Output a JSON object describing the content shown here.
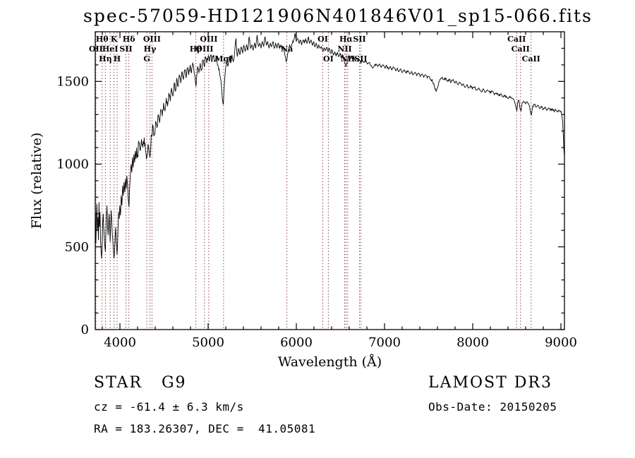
{
  "title": "spec-57059-HD121906N401846V01_sp15-066.fits",
  "annotations": {
    "class_line": "STAR   G9",
    "cz_line": "cz = -61.4 ± 6.3 km/s",
    "radec_line": "RA = 183.26307, DEC =  41.05081",
    "survey": "LAMOST DR3",
    "obs_date": "Obs-Date: 20150205"
  },
  "chart_data": {
    "type": "line",
    "title": "spec-57059-HD121906N401846V01_sp15-066.fits",
    "xlabel": "Wavelength (Å)",
    "ylabel": "Flux (relative)",
    "xlim": [
      3720,
      9040
    ],
    "ylim": [
      0,
      1800
    ],
    "xticks": [
      4000,
      5000,
      6000,
      7000,
      8000,
      9000
    ],
    "yticks": [
      0,
      500,
      1000,
      1500
    ],
    "x_minor_step": 200,
    "y_minor_step": 100,
    "grid": false,
    "legend": "none",
    "line_color": "#000000",
    "marker_line_color": "#8f4040",
    "noise": {
      "seed": 7,
      "step": 6,
      "regions": [
        {
          "to": 4400,
          "amp": 38
        },
        {
          "to": 5200,
          "amp": 18
        },
        {
          "to": 9100,
          "amp": 8
        }
      ]
    },
    "spectral_lines": [
      {
        "label": "OII",
        "wl": 3727,
        "row": 2
      },
      {
        "label": "Hθ",
        "wl": 3798,
        "row": 1
      },
      {
        "label": "Hη",
        "wl": 3835,
        "row": 3
      },
      {
        "label": "HeI",
        "wl": 3889,
        "row": 2
      },
      {
        "label": "K",
        "wl": 3933,
        "row": 1
      },
      {
        "label": "H",
        "wl": 3968,
        "row": 3
      },
      {
        "label": "SII",
        "wl": 4068,
        "row": 2
      },
      {
        "label": "Hδ",
        "wl": 4101,
        "row": 1
      },
      {
        "label": "G",
        "wl": 4305,
        "row": 3
      },
      {
        "label": "Hγ",
        "wl": 4340,
        "row": 2
      },
      {
        "label": "OIII",
        "wl": 4363,
        "row": 1
      },
      {
        "label": "Hβ",
        "wl": 4861,
        "row": 2
      },
      {
        "label": "OIII",
        "wl": 4959,
        "row": 2
      },
      {
        "label": "OIII",
        "wl": 5007,
        "row": 1
      },
      {
        "label": "MgI",
        "wl": 5175,
        "row": 3
      },
      {
        "label": "Na",
        "wl": 5893,
        "row": 2
      },
      {
        "label": "OI",
        "wl": 6300,
        "row": 1
      },
      {
        "label": "OI",
        "wl": 6363,
        "row": 3
      },
      {
        "label": "NII",
        "wl": 6548,
        "row": 2
      },
      {
        "label": "Hα",
        "wl": 6563,
        "row": 1
      },
      {
        "label": "NII",
        "wl": 6583,
        "row": 3
      },
      {
        "label": "SII",
        "wl": 6716,
        "row": 1
      },
      {
        "label": "SII",
        "wl": 6731,
        "row": 3
      },
      {
        "label": "CaII",
        "wl": 8498,
        "row": 1
      },
      {
        "label": "CaII",
        "wl": 8542,
        "row": 2
      },
      {
        "label": "CaII",
        "wl": 8662,
        "row": 3
      }
    ],
    "spectrum": [
      [
        3722,
        700
      ],
      [
        3727,
        520
      ],
      [
        3732,
        640
      ],
      [
        3738,
        760
      ],
      [
        3744,
        600
      ],
      [
        3750,
        680
      ],
      [
        3756,
        540
      ],
      [
        3762,
        770
      ],
      [
        3768,
        620
      ],
      [
        3774,
        710
      ],
      [
        3780,
        550
      ],
      [
        3786,
        470
      ],
      [
        3792,
        430
      ],
      [
        3798,
        500
      ],
      [
        3804,
        640
      ],
      [
        3810,
        700
      ],
      [
        3816,
        620
      ],
      [
        3822,
        560
      ],
      [
        3828,
        510
      ],
      [
        3835,
        470
      ],
      [
        3841,
        590
      ],
      [
        3847,
        690
      ],
      [
        3853,
        750
      ],
      [
        3859,
        640
      ],
      [
        3865,
        570
      ],
      [
        3871,
        630
      ],
      [
        3877,
        700
      ],
      [
        3883,
        610
      ],
      [
        3889,
        530
      ],
      [
        3895,
        640
      ],
      [
        3901,
        720
      ],
      [
        3907,
        660
      ],
      [
        3913,
        580
      ],
      [
        3919,
        540
      ],
      [
        3925,
        490
      ],
      [
        3933,
        430
      ],
      [
        3939,
        470
      ],
      [
        3945,
        560
      ],
      [
        3951,
        620
      ],
      [
        3957,
        540
      ],
      [
        3963,
        490
      ],
      [
        3968,
        450
      ],
      [
        3974,
        540
      ],
      [
        3980,
        640
      ],
      [
        3986,
        710
      ],
      [
        3992,
        670
      ],
      [
        3998,
        750
      ],
      [
        4006,
        690
      ],
      [
        4014,
        810
      ],
      [
        4022,
        750
      ],
      [
        4030,
        870
      ],
      [
        4038,
        810
      ],
      [
        4046,
        890
      ],
      [
        4054,
        830
      ],
      [
        4062,
        910
      ],
      [
        4070,
        850
      ],
      [
        4078,
        930
      ],
      [
        4086,
        870
      ],
      [
        4094,
        790
      ],
      [
        4102,
        740
      ],
      [
        4110,
        860
      ],
      [
        4118,
        940
      ],
      [
        4126,
        1000
      ],
      [
        4134,
        950
      ],
      [
        4142,
        1040
      ],
      [
        4150,
        980
      ],
      [
        4158,
        1060
      ],
      [
        4166,
        1010
      ],
      [
        4174,
        1080
      ],
      [
        4182,
        1030
      ],
      [
        4190,
        1100
      ],
      [
        4200,
        1050
      ],
      [
        4215,
        1130
      ],
      [
        4230,
        1080
      ],
      [
        4245,
        1150
      ],
      [
        4260,
        1100
      ],
      [
        4275,
        1160
      ],
      [
        4290,
        1080
      ],
      [
        4305,
        1040
      ],
      [
        4320,
        1120
      ],
      [
        4332,
        1070
      ],
      [
        4340,
        1040
      ],
      [
        4350,
        1110
      ],
      [
        4360,
        1170
      ],
      [
        4375,
        1230
      ],
      [
        4390,
        1180
      ],
      [
        4405,
        1260
      ],
      [
        4420,
        1220
      ],
      [
        4435,
        1300
      ],
      [
        4450,
        1250
      ],
      [
        4465,
        1330
      ],
      [
        4480,
        1290
      ],
      [
        4495,
        1370
      ],
      [
        4510,
        1320
      ],
      [
        4525,
        1400
      ],
      [
        4540,
        1350
      ],
      [
        4555,
        1430
      ],
      [
        4570,
        1380
      ],
      [
        4585,
        1460
      ],
      [
        4600,
        1410
      ],
      [
        4615,
        1490
      ],
      [
        4630,
        1440
      ],
      [
        4645,
        1520
      ],
      [
        4660,
        1470
      ],
      [
        4675,
        1540
      ],
      [
        4690,
        1490
      ],
      [
        4705,
        1560
      ],
      [
        4720,
        1510
      ],
      [
        4735,
        1570
      ],
      [
        4750,
        1520
      ],
      [
        4765,
        1580
      ],
      [
        4780,
        1540
      ],
      [
        4795,
        1600
      ],
      [
        4810,
        1550
      ],
      [
        4825,
        1610
      ],
      [
        4840,
        1560
      ],
      [
        4855,
        1500
      ],
      [
        4862,
        1470
      ],
      [
        4870,
        1530
      ],
      [
        4880,
        1590
      ],
      [
        4895,
        1550
      ],
      [
        4910,
        1610
      ],
      [
        4925,
        1570
      ],
      [
        4940,
        1630
      ],
      [
        4955,
        1590
      ],
      [
        4970,
        1650
      ],
      [
        4985,
        1610
      ],
      [
        5000,
        1650
      ],
      [
        5015,
        1620
      ],
      [
        5030,
        1660
      ],
      [
        5045,
        1620
      ],
      [
        5060,
        1660
      ],
      [
        5075,
        1620
      ],
      [
        5090,
        1650
      ],
      [
        5105,
        1600
      ],
      [
        5120,
        1570
      ],
      [
        5135,
        1530
      ],
      [
        5150,
        1470
      ],
      [
        5165,
        1380
      ],
      [
        5172,
        1360
      ],
      [
        5180,
        1450
      ],
      [
        5195,
        1560
      ],
      [
        5210,
        1620
      ],
      [
        5225,
        1590
      ],
      [
        5240,
        1650
      ],
      [
        5255,
        1610
      ],
      [
        5270,
        1660
      ],
      [
        5285,
        1620
      ],
      [
        5300,
        1670
      ],
      [
        5315,
        1760
      ],
      [
        5330,
        1650
      ],
      [
        5345,
        1700
      ],
      [
        5360,
        1660
      ],
      [
        5375,
        1710
      ],
      [
        5390,
        1670
      ],
      [
        5405,
        1720
      ],
      [
        5420,
        1680
      ],
      [
        5435,
        1720
      ],
      [
        5450,
        1690
      ],
      [
        5465,
        1770
      ],
      [
        5480,
        1700
      ],
      [
        5495,
        1720
      ],
      [
        5510,
        1690
      ],
      [
        5525,
        1730
      ],
      [
        5540,
        1700
      ],
      [
        5555,
        1780
      ],
      [
        5570,
        1710
      ],
      [
        5585,
        1730
      ],
      [
        5600,
        1700
      ],
      [
        5615,
        1740
      ],
      [
        5630,
        1710
      ],
      [
        5645,
        1770
      ],
      [
        5660,
        1720
      ],
      [
        5675,
        1740
      ],
      [
        5690,
        1700
      ],
      [
        5705,
        1730
      ],
      [
        5720,
        1710
      ],
      [
        5735,
        1740
      ],
      [
        5750,
        1700
      ],
      [
        5765,
        1730
      ],
      [
        5780,
        1700
      ],
      [
        5795,
        1730
      ],
      [
        5810,
        1700
      ],
      [
        5825,
        1720
      ],
      [
        5840,
        1690
      ],
      [
        5855,
        1700
      ],
      [
        5870,
        1660
      ],
      [
        5885,
        1620
      ],
      [
        5895,
        1640
      ],
      [
        5910,
        1690
      ],
      [
        5925,
        1720
      ],
      [
        5940,
        1700
      ],
      [
        5955,
        1730
      ],
      [
        5970,
        1750
      ],
      [
        5985,
        1790
      ],
      [
        6000,
        1740
      ],
      [
        6015,
        1760
      ],
      [
        6030,
        1730
      ],
      [
        6045,
        1750
      ],
      [
        6060,
        1720
      ],
      [
        6075,
        1750
      ],
      [
        6090,
        1730
      ],
      [
        6105,
        1760
      ],
      [
        6120,
        1730
      ],
      [
        6135,
        1770
      ],
      [
        6150,
        1730
      ],
      [
        6165,
        1750
      ],
      [
        6180,
        1720
      ],
      [
        6195,
        1740
      ],
      [
        6210,
        1710
      ],
      [
        6225,
        1730
      ],
      [
        6240,
        1700
      ],
      [
        6255,
        1720
      ],
      [
        6270,
        1700
      ],
      [
        6285,
        1710
      ],
      [
        6300,
        1680
      ],
      [
        6315,
        1700
      ],
      [
        6330,
        1690
      ],
      [
        6345,
        1705
      ],
      [
        6360,
        1680
      ],
      [
        6375,
        1700
      ],
      [
        6390,
        1670
      ],
      [
        6405,
        1690
      ],
      [
        6420,
        1660
      ],
      [
        6435,
        1680
      ],
      [
        6450,
        1655
      ],
      [
        6465,
        1675
      ],
      [
        6480,
        1650
      ],
      [
        6495,
        1670
      ],
      [
        6510,
        1645
      ],
      [
        6525,
        1660
      ],
      [
        6540,
        1625
      ],
      [
        6555,
        1600
      ],
      [
        6565,
        1590
      ],
      [
        6580,
        1630
      ],
      [
        6595,
        1655
      ],
      [
        6610,
        1635
      ],
      [
        6625,
        1655
      ],
      [
        6640,
        1630
      ],
      [
        6655,
        1645
      ],
      [
        6670,
        1625
      ],
      [
        6685,
        1640
      ],
      [
        6700,
        1620
      ],
      [
        6715,
        1630
      ],
      [
        6730,
        1610
      ],
      [
        6745,
        1625
      ],
      [
        6765,
        1615
      ],
      [
        6785,
        1625
      ],
      [
        6805,
        1605
      ],
      [
        6825,
        1615
      ],
      [
        6845,
        1595
      ],
      [
        6865,
        1580
      ],
      [
        6885,
        1595
      ],
      [
        6905,
        1605
      ],
      [
        6925,
        1590
      ],
      [
        6945,
        1605
      ],
      [
        6965,
        1585
      ],
      [
        6985,
        1600
      ],
      [
        7005,
        1580
      ],
      [
        7025,
        1595
      ],
      [
        7045,
        1575
      ],
      [
        7065,
        1590
      ],
      [
        7085,
        1570
      ],
      [
        7105,
        1585
      ],
      [
        7125,
        1565
      ],
      [
        7145,
        1580
      ],
      [
        7165,
        1560
      ],
      [
        7185,
        1575
      ],
      [
        7205,
        1555
      ],
      [
        7225,
        1570
      ],
      [
        7245,
        1550
      ],
      [
        7265,
        1565
      ],
      [
        7285,
        1545
      ],
      [
        7305,
        1560
      ],
      [
        7325,
        1540
      ],
      [
        7345,
        1555
      ],
      [
        7365,
        1535
      ],
      [
        7385,
        1550
      ],
      [
        7405,
        1530
      ],
      [
        7425,
        1545
      ],
      [
        7445,
        1525
      ],
      [
        7465,
        1540
      ],
      [
        7485,
        1520
      ],
      [
        7505,
        1530
      ],
      [
        7525,
        1510
      ],
      [
        7545,
        1500
      ],
      [
        7565,
        1470
      ],
      [
        7585,
        1440
      ],
      [
        7600,
        1460
      ],
      [
        7615,
        1495
      ],
      [
        7635,
        1515
      ],
      [
        7655,
        1525
      ],
      [
        7675,
        1510
      ],
      [
        7695,
        1520
      ],
      [
        7715,
        1500
      ],
      [
        7735,
        1515
      ],
      [
        7755,
        1495
      ],
      [
        7775,
        1510
      ],
      [
        7795,
        1490
      ],
      [
        7815,
        1500
      ],
      [
        7835,
        1480
      ],
      [
        7855,
        1495
      ],
      [
        7875,
        1475
      ],
      [
        7895,
        1485
      ],
      [
        7915,
        1465
      ],
      [
        7935,
        1480
      ],
      [
        7955,
        1460
      ],
      [
        7975,
        1475
      ],
      [
        7995,
        1455
      ],
      [
        8020,
        1465
      ],
      [
        8045,
        1450
      ],
      [
        8070,
        1460
      ],
      [
        8095,
        1440
      ],
      [
        8120,
        1455
      ],
      [
        8145,
        1435
      ],
      [
        8170,
        1445
      ],
      [
        8195,
        1430
      ],
      [
        8220,
        1440
      ],
      [
        8245,
        1420
      ],
      [
        8270,
        1430
      ],
      [
        8295,
        1415
      ],
      [
        8320,
        1425
      ],
      [
        8345,
        1405
      ],
      [
        8370,
        1415
      ],
      [
        8395,
        1400
      ],
      [
        8420,
        1410
      ],
      [
        8445,
        1395
      ],
      [
        8470,
        1385
      ],
      [
        8490,
        1340
      ],
      [
        8500,
        1320
      ],
      [
        8510,
        1370
      ],
      [
        8525,
        1385
      ],
      [
        8538,
        1330
      ],
      [
        8548,
        1320
      ],
      [
        8560,
        1370
      ],
      [
        8580,
        1380
      ],
      [
        8600,
        1365
      ],
      [
        8620,
        1375
      ],
      [
        8640,
        1355
      ],
      [
        8655,
        1310
      ],
      [
        8665,
        1295
      ],
      [
        8680,
        1350
      ],
      [
        8700,
        1360
      ],
      [
        8720,
        1345
      ],
      [
        8740,
        1355
      ],
      [
        8760,
        1335
      ],
      [
        8780,
        1345
      ],
      [
        8800,
        1330
      ],
      [
        8820,
        1345
      ],
      [
        8840,
        1325
      ],
      [
        8860,
        1340
      ],
      [
        8880,
        1325
      ],
      [
        8900,
        1335
      ],
      [
        8920,
        1320
      ],
      [
        8940,
        1330
      ],
      [
        8960,
        1315
      ],
      [
        8980,
        1325
      ],
      [
        9000,
        1320
      ],
      [
        9010,
        1300
      ],
      [
        9018,
        1260
      ],
      [
        9026,
        1180
      ],
      [
        9034,
        1080
      ],
      [
        9040,
        1050
      ]
    ]
  }
}
